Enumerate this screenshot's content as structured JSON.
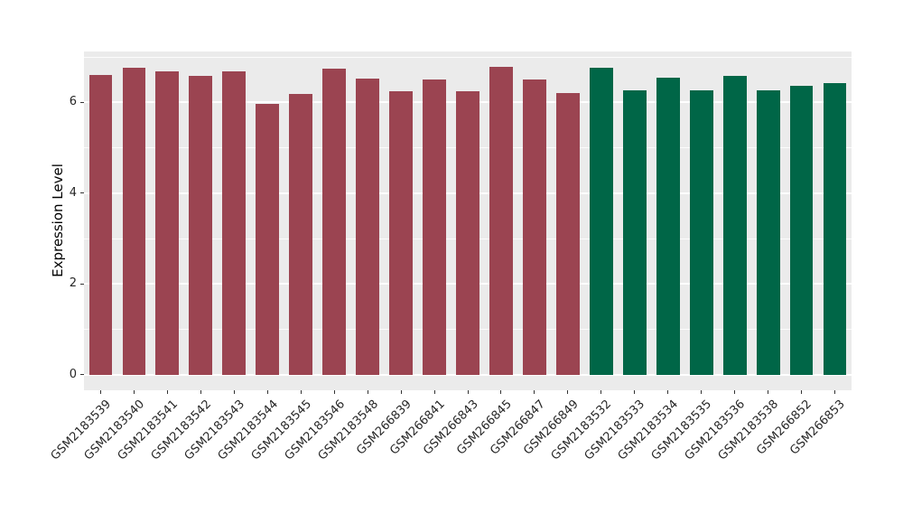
{
  "chart_data": {
    "type": "bar",
    "title": "",
    "xlabel": "",
    "ylabel": "Expression Level",
    "categories": [
      "GSM2183539",
      "GSM2183540",
      "GSM2183541",
      "GSM2183542",
      "GSM2183543",
      "GSM2183544",
      "GSM2183545",
      "GSM2183546",
      "GSM2183548",
      "GSM266839",
      "GSM266841",
      "GSM266843",
      "GSM266845",
      "GSM266847",
      "GSM266849",
      "GSM2183532",
      "GSM2183533",
      "GSM2183534",
      "GSM2183535",
      "GSM2183536",
      "GSM2183538",
      "GSM266852",
      "GSM266853"
    ],
    "values": [
      6.6,
      6.77,
      6.68,
      6.59,
      6.69,
      5.96,
      6.18,
      6.75,
      6.53,
      6.24,
      6.5,
      6.25,
      6.78,
      6.5,
      6.21,
      6.77,
      6.26,
      6.55,
      6.26,
      6.59,
      6.26,
      6.36,
      6.42
    ],
    "colors": [
      "#9B4451",
      "#9B4451",
      "#9B4451",
      "#9B4451",
      "#9B4451",
      "#9B4451",
      "#9B4451",
      "#9B4451",
      "#9B4451",
      "#9B4451",
      "#9B4451",
      "#9B4451",
      "#9B4451",
      "#9B4451",
      "#9B4451",
      "#006647",
      "#006647",
      "#006647",
      "#006647",
      "#006647",
      "#006647",
      "#006647",
      "#006647"
    ],
    "groups": [
      {
        "name": "group-1-maroon",
        "color": "#9B4451",
        "sample_count": 15
      },
      {
        "name": "group-2-green",
        "color": "#006647",
        "sample_count": 8
      }
    ],
    "ylim": [
      -0.34,
      7.12
    ],
    "yticks": [
      0,
      2,
      4,
      6
    ],
    "minor_yticks": [
      1,
      3,
      5,
      7
    ],
    "grid": "on",
    "legend": "none",
    "panel_bg": "#EBEBEB",
    "grid_color": "#FFFFFF",
    "axis_text_color": "#262626",
    "bar_width_fraction": 0.7,
    "x_tick_rotation": 45
  }
}
